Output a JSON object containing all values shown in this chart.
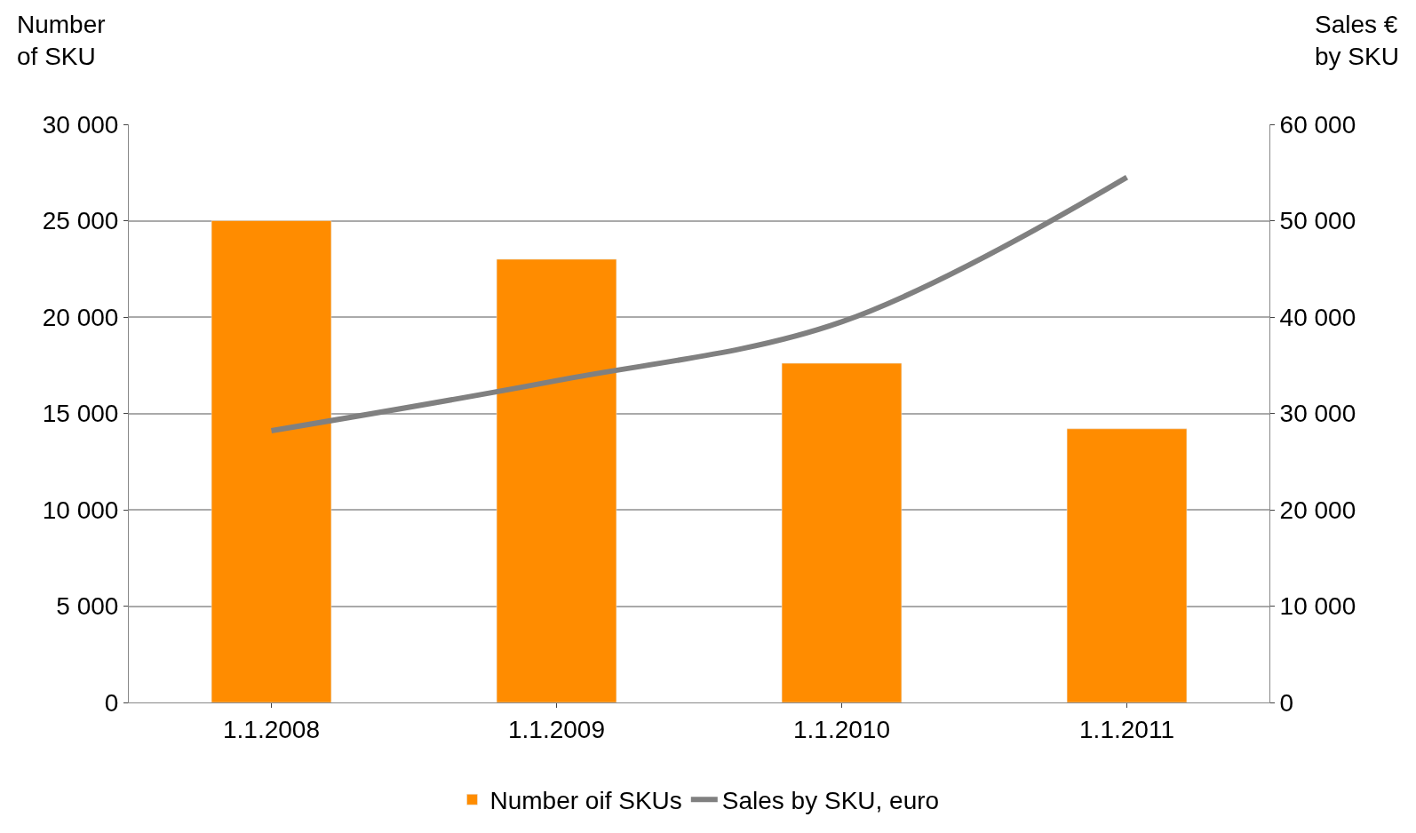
{
  "chart_data": {
    "type": "bar",
    "ylabel": "Number\nof SKU",
    "y2label": "Sales €\nby SKU",
    "categories": [
      "1.1.2008",
      "1.1.2009",
      "1.1.2010",
      "1.1.2011"
    ],
    "series": [
      {
        "name": "Number oif SKUs",
        "color": "#ff8c00",
        "values": [
          25000,
          23000,
          17600,
          14200
        ]
      },
      {
        "name": "Sales by SKU, euro",
        "type": "line",
        "axis": "y2",
        "color": "#808080",
        "values": [
          28200,
          33400,
          39500,
          54500
        ]
      }
    ],
    "ylim": [
      0,
      30000
    ],
    "yticks": [
      {
        "value": 0,
        "label": "0"
      },
      {
        "value": 5000,
        "label": "5 000"
      },
      {
        "value": 10000,
        "label": "10 000"
      },
      {
        "value": 15000,
        "label": "15 000"
      },
      {
        "value": 20000,
        "label": "20 000"
      },
      {
        "value": 25000,
        "label": "25 000"
      },
      {
        "value": 30000,
        "label": "30 000"
      }
    ],
    "y2lim": [
      0,
      60000
    ],
    "y2ticks": [
      {
        "value": 0,
        "label": "0"
      },
      {
        "value": 10000,
        "label": "10 000"
      },
      {
        "value": 20000,
        "label": "20 000"
      },
      {
        "value": 30000,
        "label": "30 000"
      },
      {
        "value": 40000,
        "label": "40 000"
      },
      {
        "value": 50000,
        "label": "50 000"
      },
      {
        "value": 60000,
        "label": "60 000"
      }
    ],
    "grid": "y",
    "legend": "bottom",
    "marker": "none",
    "line_style": "solid"
  }
}
